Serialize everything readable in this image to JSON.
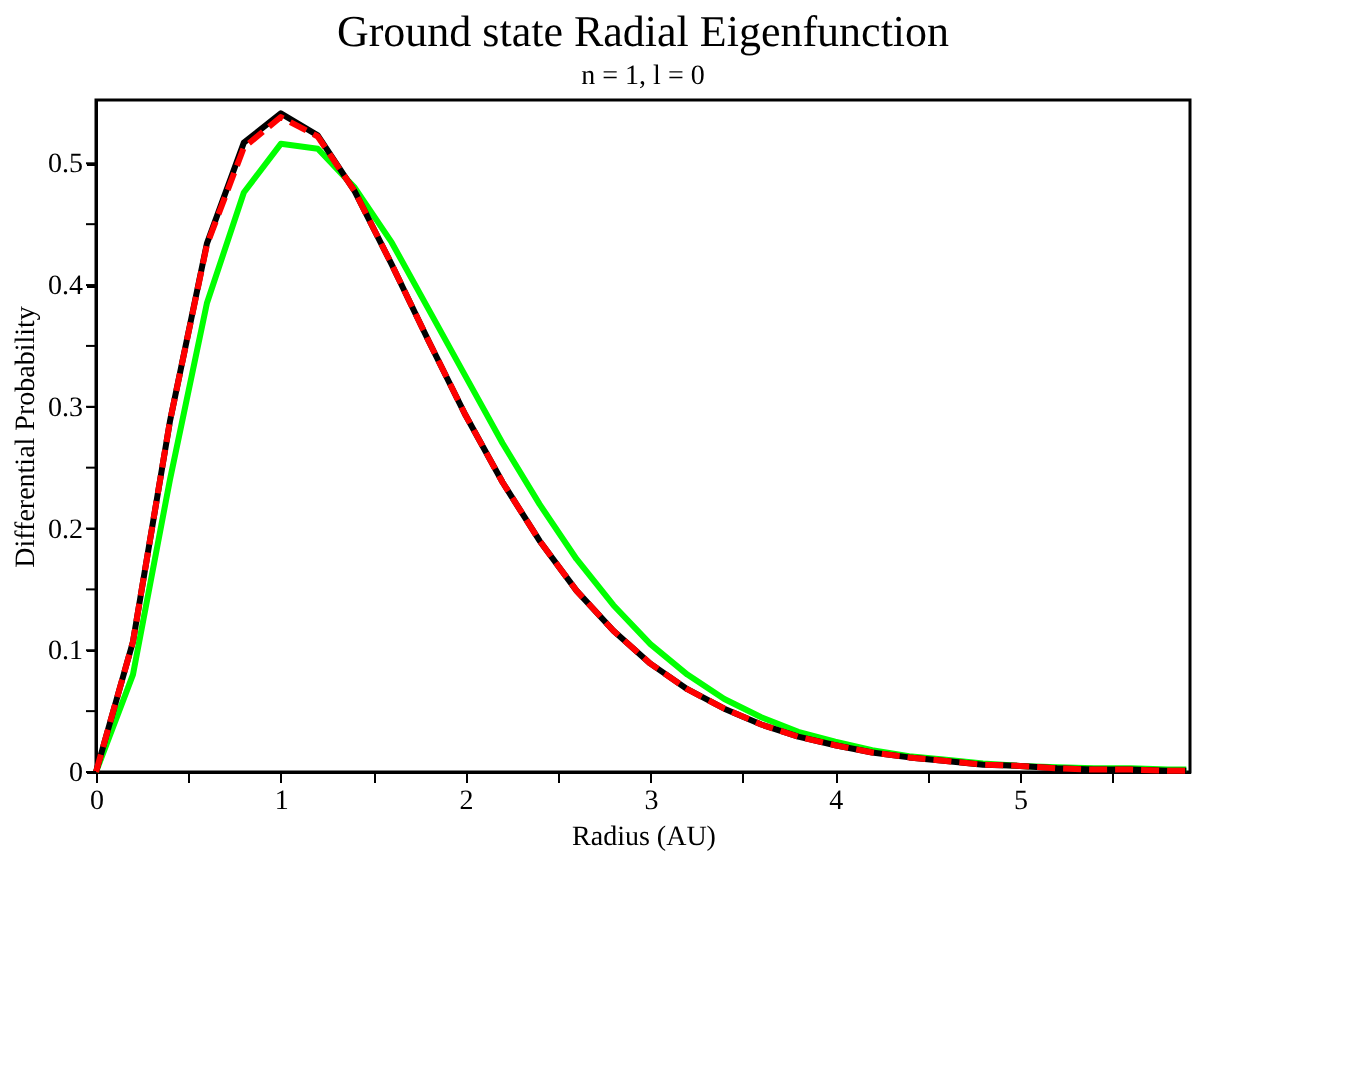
{
  "chart_data": {
    "type": "line",
    "title": "Ground state Radial Eigenfunction",
    "subtitle": "n = 1, l = 0",
    "xlabel": "Radius (AU)",
    "ylabel": "Differential Probability",
    "x": [
      0,
      0.2,
      0.4,
      0.6,
      0.8,
      1.0,
      1.2,
      1.4,
      1.6,
      1.8,
      2.0,
      2.2,
      2.4,
      2.6,
      2.8,
      3.0,
      3.2,
      3.4,
      3.6,
      3.8,
      4.0,
      4.2,
      4.4,
      4.6,
      4.8,
      5.0,
      5.2,
      5.4,
      5.6,
      5.8,
      5.9
    ],
    "series": [
      {
        "color": "#000000",
        "line_style": "solid",
        "values": [
          0,
          0.107,
          0.288,
          0.434,
          0.517,
          0.541,
          0.523,
          0.477,
          0.417,
          0.354,
          0.293,
          0.238,
          0.19,
          0.149,
          0.116,
          0.089,
          0.068,
          0.052,
          0.039,
          0.029,
          0.022,
          0.016,
          0.012,
          0.009,
          0.006,
          0.005,
          0.003,
          0.002,
          0.002,
          0.001,
          0.001
        ]
      },
      {
        "color": "#ff0000",
        "line_style": "dashed",
        "values": [
          0,
          0.107,
          0.288,
          0.433,
          0.513,
          0.538,
          0.522,
          0.477,
          0.417,
          0.354,
          0.293,
          0.238,
          0.19,
          0.149,
          0.116,
          0.089,
          0.068,
          0.052,
          0.039,
          0.029,
          0.022,
          0.016,
          0.012,
          0.009,
          0.006,
          0.005,
          0.003,
          0.002,
          0.002,
          0.001,
          0.001
        ]
      },
      {
        "color": "#00ff00",
        "line_style": "solid",
        "values": [
          0,
          0.08,
          0.24,
          0.385,
          0.476,
          0.516,
          0.512,
          0.48,
          0.435,
          0.38,
          0.325,
          0.27,
          0.22,
          0.175,
          0.137,
          0.105,
          0.08,
          0.06,
          0.045,
          0.033,
          0.025,
          0.018,
          0.013,
          0.01,
          0.007,
          0.005,
          0.004,
          0.003,
          0.003,
          0.002,
          0.002
        ]
      }
    ],
    "xlim": [
      0,
      5.92
    ],
    "ylim": [
      0,
      0.552
    ],
    "xticks": [
      0,
      {
        "value": 0.5,
        "label": null
      },
      1,
      {
        "value": 1.5,
        "label": null
      },
      2,
      {
        "value": 2.5,
        "label": null
      },
      3,
      {
        "value": 3.5,
        "label": null
      },
      4,
      {
        "value": 4.5,
        "label": null
      },
      5,
      {
        "value": 5.5,
        "label": null
      }
    ],
    "yticks": [
      0,
      {
        "value": 0.05,
        "label": null
      },
      0.1,
      {
        "value": 0.15,
        "label": null
      },
      0.2,
      {
        "value": 0.25,
        "label": null
      },
      0.3,
      {
        "value": 0.35,
        "label": null
      },
      0.4,
      {
        "value": 0.45,
        "label": null
      },
      0.5
    ],
    "grid": false,
    "marker": "none"
  }
}
